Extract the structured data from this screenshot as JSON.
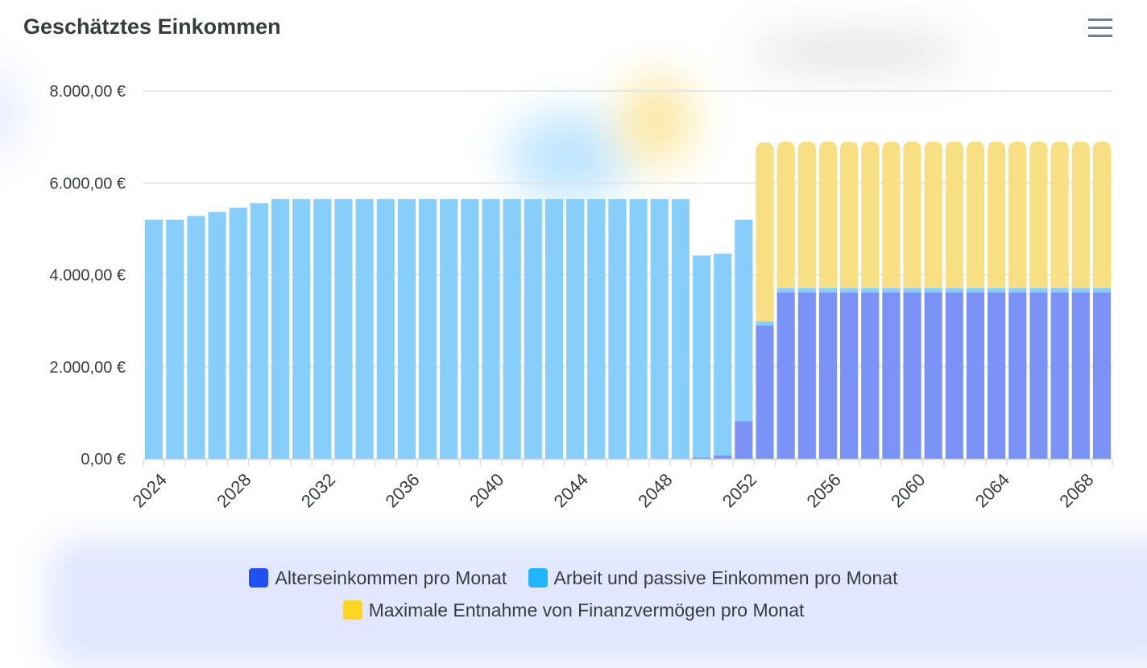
{
  "header": {
    "title": "Geschätztes Einkommen",
    "menu_icon": "hamburger-menu-icon"
  },
  "colors": {
    "altersEinkommen": "#7b92f7",
    "arbeit": "#87cefa",
    "entnahme": "#f9df84",
    "legend_alters": "#2150f0",
    "legend_arbeit": "#21b5ff",
    "legend_entnahme": "#fdd522",
    "grid": "#e0e0e0"
  },
  "chart_data": {
    "type": "bar",
    "stacked": true,
    "title": "Geschätztes Einkommen",
    "ylim": [
      0,
      8000
    ],
    "y_ticks": [
      "8.000,00 €",
      "6.000,00 €",
      "4.000,00 €",
      "2.000,00 €",
      "0,00 €"
    ],
    "x_tick_labels": [
      "2024",
      "2028",
      "2032",
      "2036",
      "2040",
      "2044",
      "2048",
      "2052",
      "2056",
      "2060",
      "2064",
      "2068"
    ],
    "categories": [
      2024,
      2025,
      2026,
      2027,
      2028,
      2029,
      2030,
      2031,
      2032,
      2033,
      2034,
      2035,
      2036,
      2037,
      2038,
      2039,
      2040,
      2041,
      2042,
      2043,
      2044,
      2045,
      2046,
      2047,
      2048,
      2049,
      2050,
      2051,
      2052,
      2053,
      2054,
      2055,
      2056,
      2057,
      2058,
      2059,
      2060,
      2061,
      2062,
      2063,
      2064,
      2065,
      2066,
      2067,
      2068,
      2069
    ],
    "series": [
      {
        "name": "Alterseinkommen pro Monat",
        "values": [
          0,
          0,
          0,
          0,
          0,
          0,
          0,
          0,
          0,
          0,
          0,
          0,
          0,
          0,
          0,
          0,
          0,
          0,
          0,
          0,
          0,
          0,
          0,
          0,
          0,
          0,
          30,
          70,
          820,
          2900,
          3620,
          3620,
          3620,
          3620,
          3620,
          3620,
          3620,
          3620,
          3620,
          3620,
          3620,
          3620,
          3620,
          3620,
          3620,
          3620
        ]
      },
      {
        "name": "Arbeit und passive Einkommen pro Monat",
        "values": [
          5200,
          5200,
          5280,
          5370,
          5460,
          5560,
          5650,
          5650,
          5650,
          5650,
          5650,
          5650,
          5650,
          5650,
          5650,
          5650,
          5650,
          5650,
          5650,
          5650,
          5650,
          5650,
          5650,
          5650,
          5650,
          5650,
          4390,
          4390,
          4380,
          90,
          90,
          90,
          90,
          90,
          90,
          90,
          90,
          90,
          90,
          90,
          90,
          90,
          90,
          90,
          90,
          90
        ]
      },
      {
        "name": "Maximale Entnahme von Finanzvermögen pro Monat",
        "values": [
          0,
          0,
          0,
          0,
          0,
          0,
          0,
          0,
          0,
          0,
          0,
          0,
          0,
          0,
          0,
          0,
          0,
          0,
          0,
          0,
          0,
          0,
          0,
          0,
          0,
          0,
          0,
          0,
          0,
          3890,
          3190,
          3190,
          3190,
          3190,
          3190,
          3190,
          3190,
          3190,
          3190,
          3190,
          3190,
          3190,
          3190,
          3190,
          3190,
          3190
        ]
      }
    ],
    "legend_position": "bottom"
  },
  "legend": {
    "item1": "Alterseinkommen pro Monat",
    "item2": "Arbeit und passive Einkommen pro Monat",
    "item3": "Maximale Entnahme von Finanzvermögen pro Monat"
  }
}
